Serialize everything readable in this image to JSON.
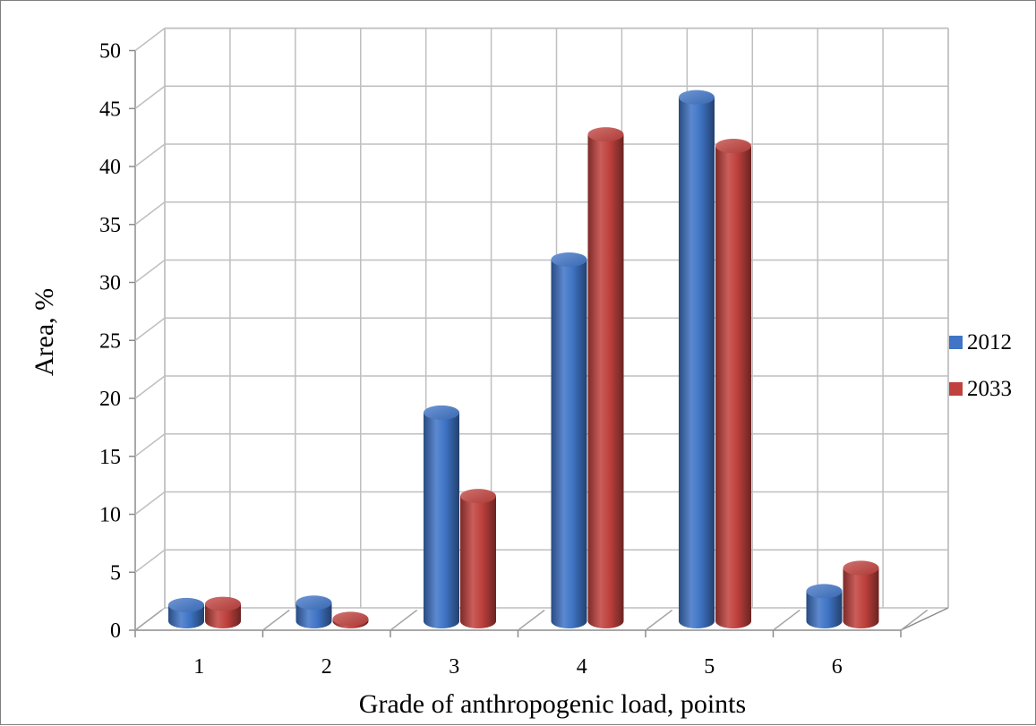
{
  "chart_data": {
    "type": "bar",
    "style": "3d-cylinder",
    "categories": [
      "1",
      "2",
      "3",
      "4",
      "5",
      "6"
    ],
    "series": [
      {
        "name": "2012",
        "color": "#3f74c6",
        "values": [
          1.4,
          1.6,
          18,
          31.2,
          45.2,
          2.6
        ]
      },
      {
        "name": "2033",
        "color": "#c0413d",
        "values": [
          1.5,
          0.2,
          10.8,
          42,
          41,
          4.6
        ]
      }
    ],
    "xlabel": "Grade of anthropogenic load, points",
    "ylabel": "Area, %",
    "ylim": [
      0,
      50
    ],
    "yticks": [
      "0",
      "5",
      "10",
      "15",
      "20",
      "25",
      "30",
      "35",
      "40",
      "45",
      "50"
    ],
    "grid": true,
    "legend_position": "right"
  }
}
